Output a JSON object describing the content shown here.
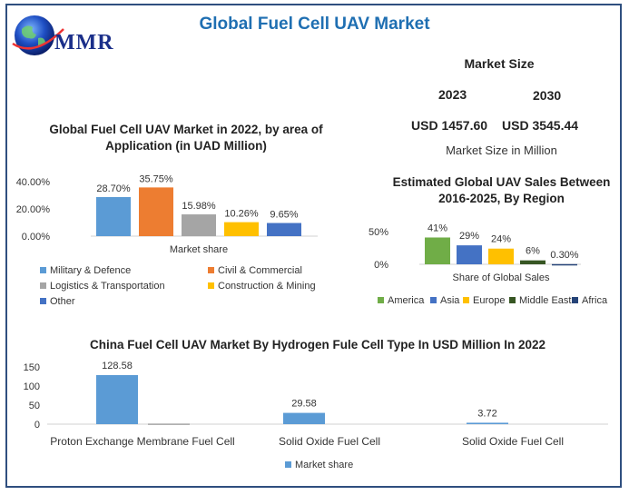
{
  "header": {
    "title": "Global Fuel Cell UAV Market",
    "logo_text": "MMR"
  },
  "market_size": {
    "title": "Market Size",
    "year_2023": "2023",
    "year_2030": "2030",
    "value_2023": "USD 1457.60",
    "value_2030": "USD 3545.44",
    "note": "Market Size in Million"
  },
  "colors": {
    "blue": "#5b9bd5",
    "orange": "#ed7d31",
    "gray": "#a5a5a5",
    "yellow": "#ffc000",
    "darkblue": "#4472c4",
    "green": "#70ad47",
    "darkgreen": "#375623",
    "navy": "#264478",
    "frame": "#2f4f7f",
    "title": "#1f6fb2"
  },
  "chart_data": [
    {
      "id": "application",
      "type": "bar",
      "title": "Global Fuel Cell UAV Market in 2022, by area of Application (in UAD Million)",
      "xlabel": "Market share",
      "ylabel": "",
      "yticks": [
        "0.00%",
        "20.00%",
        "40.00%"
      ],
      "ylim": [
        0,
        40
      ],
      "legend_position": "bottom",
      "series": [
        {
          "name": "Military & Defence",
          "value": 28.7,
          "label": "28.70%",
          "color": "#5b9bd5"
        },
        {
          "name": "Civil & Commercial",
          "value": 35.75,
          "label": "35.75%",
          "color": "#ed7d31"
        },
        {
          "name": "Logistics & Transportation",
          "value": 15.98,
          "label": "15.98%",
          "color": "#a5a5a5"
        },
        {
          "name": "Construction & Mining",
          "value": 10.26,
          "label": "10.26%",
          "color": "#ffc000"
        },
        {
          "name": "Other",
          "value": 9.65,
          "label": "9.65%",
          "color": "#4472c4"
        }
      ]
    },
    {
      "id": "region",
      "type": "bar",
      "title": "Estimated Global UAV Sales Between 2016-2025, By Region",
      "xlabel": "Share of Global Sales",
      "ylabel": "",
      "yticks": [
        "0%",
        "50%"
      ],
      "ylim": [
        0,
        60
      ],
      "legend_position": "bottom",
      "series": [
        {
          "name": "America",
          "value": 41,
          "label": "41%",
          "color": "#70ad47"
        },
        {
          "name": "Asia",
          "value": 29,
          "label": "29%",
          "color": "#4472c4"
        },
        {
          "name": "Europe",
          "value": 24,
          "label": "24%",
          "color": "#ffc000"
        },
        {
          "name": "Middle East",
          "value": 6,
          "label": "6%",
          "color": "#375623"
        },
        {
          "name": "Africa",
          "value": 0.3,
          "label": "0.30%",
          "color": "#264478"
        }
      ]
    },
    {
      "id": "china",
      "type": "bar",
      "title": "China Fuel Cell UAV Market By Hydrogen Fule Cell Type In USD Million In 2022",
      "xlabel": "",
      "ylabel": "",
      "yticks": [
        "0",
        "50",
        "100",
        "150"
      ],
      "ylim": [
        0,
        150
      ],
      "legend_position": "bottom",
      "categories": [
        "Proton Exchange Membrane Fuel Cell",
        "Solid Oxide Fuel Cell",
        "Solid Oxide Fuel Cell"
      ],
      "series": [
        {
          "name": "Market share",
          "values": [
            128.58,
            29.58,
            3.72
          ],
          "labels": [
            "128.58",
            "29.58",
            "3.72"
          ],
          "color": "#5b9bd5"
        },
        {
          "name": "",
          "values": [
            1.5,
            0,
            0
          ],
          "labels": [
            "",
            "",
            ""
          ],
          "color": "#a5a5a5"
        }
      ]
    }
  ]
}
